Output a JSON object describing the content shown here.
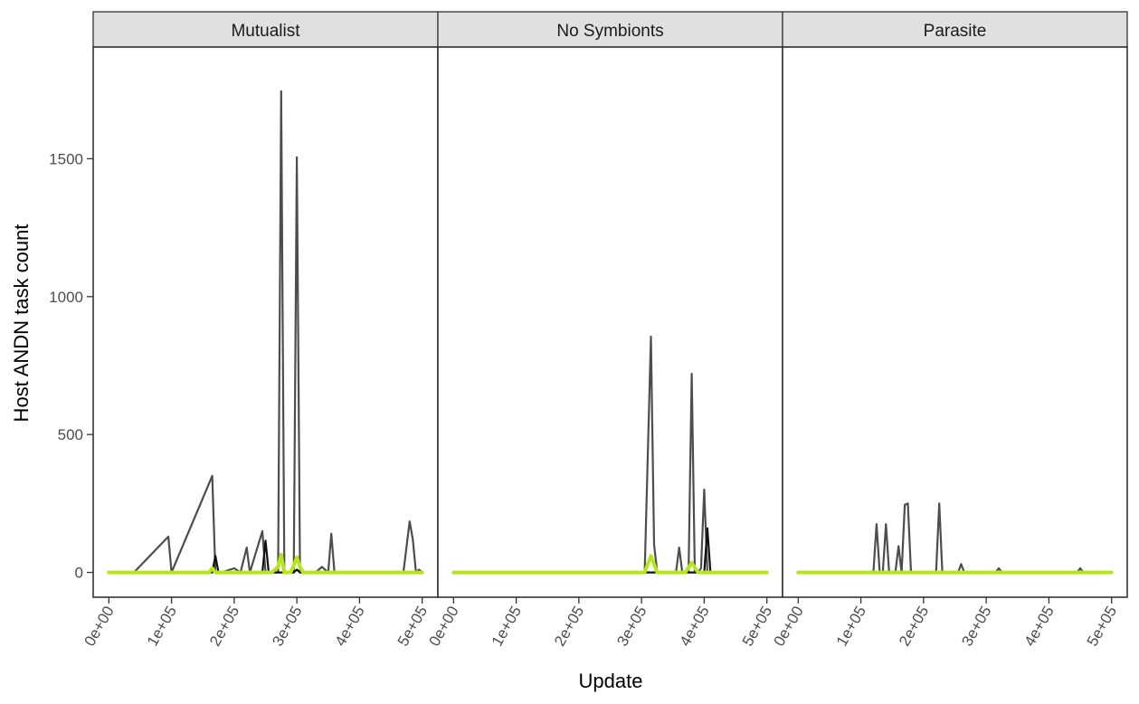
{
  "chart_data": {
    "type": "line",
    "xlabel": "Update",
    "ylabel": "Host ANDN task count",
    "xlim": [
      -25000,
      525000
    ],
    "ylim": [
      -90,
      1905
    ],
    "x_ticks": [
      0,
      100000,
      200000,
      300000,
      400000,
      500000
    ],
    "x_tick_labels": [
      "0e+00",
      "1e+05",
      "2e+05",
      "3e+05",
      "4e+05",
      "5e+05"
    ],
    "y_ticks": [
      0,
      500,
      1000,
      1500
    ],
    "y_tick_labels": [
      "0",
      "500",
      "1000",
      "1500"
    ],
    "grid": false,
    "legend": "none",
    "colors": {
      "dark_line": "#4d4d4d",
      "black_line": "#111111",
      "green_line": "#b5e61d",
      "strip_fill": "#e0e0e0",
      "axis": "#333333"
    },
    "panels": [
      {
        "label": "Mutualist",
        "series": [
          {
            "color": "dark_line",
            "x": [
              0,
              30000,
              40000,
              95000,
              100000,
              165000,
              170000,
              180000,
              200000,
              210000,
              220000,
              225000,
              245000,
              250000,
              270000,
              275000,
              280000,
              295000,
              300000,
              305000,
              330000,
              340000,
              350000,
              355000,
              360000,
              400000,
              470000,
              480000,
              485000,
              490000,
              495000,
              500000
            ],
            "y": [
              0,
              0,
              0,
              130,
              0,
              350,
              0,
              0,
              15,
              0,
              90,
              0,
              150,
              0,
              0,
              1745,
              0,
              0,
              1505,
              0,
              0,
              20,
              0,
              140,
              0,
              0,
              0,
              185,
              120,
              0,
              10,
              0
            ]
          },
          {
            "color": "black_line",
            "x": [
              0,
              165000,
              170000,
              175000,
              245000,
              250000,
              255000,
              295000,
              300000,
              305000,
              500000
            ],
            "y": [
              0,
              0,
              60,
              0,
              0,
              115,
              0,
              0,
              10,
              0,
              0
            ]
          },
          {
            "color": "green_line",
            "x": [
              0,
              160000,
              165000,
              170000,
              260000,
              270000,
              275000,
              280000,
              290000,
              295000,
              300000,
              305000,
              310000,
              500000
            ],
            "y": [
              0,
              0,
              15,
              0,
              0,
              20,
              65,
              0,
              0,
              25,
              55,
              20,
              0,
              0
            ]
          }
        ]
      },
      {
        "label": "No Symbionts",
        "series": [
          {
            "color": "dark_line",
            "x": [
              0,
              300000,
              305000,
              315000,
              320000,
              325000,
              355000,
              360000,
              365000,
              375000,
              380000,
              385000,
              390000,
              395000,
              400000,
              405000,
              500000
            ],
            "y": [
              0,
              0,
              0,
              855,
              100,
              0,
              0,
              90,
              0,
              0,
              720,
              0,
              0,
              15,
              300,
              0,
              0
            ]
          },
          {
            "color": "black_line",
            "x": [
              0,
              400000,
              405000,
              410000,
              500000
            ],
            "y": [
              0,
              0,
              160,
              0,
              0
            ]
          },
          {
            "color": "green_line",
            "x": [
              0,
              305000,
              315000,
              325000,
              370000,
              380000,
              390000,
              500000
            ],
            "y": [
              0,
              0,
              60,
              0,
              0,
              35,
              0,
              0
            ]
          }
        ]
      },
      {
        "label": "Parasite",
        "series": [
          {
            "color": "dark_line",
            "x": [
              0,
              120000,
              125000,
              130000,
              135000,
              140000,
              145000,
              155000,
              160000,
              165000,
              170000,
              175000,
              180000,
              220000,
              225000,
              230000,
              255000,
              260000,
              265000,
              315000,
              320000,
              325000,
              445000,
              450000,
              455000,
              500000
            ],
            "y": [
              0,
              0,
              175,
              0,
              0,
              175,
              0,
              0,
              95,
              0,
              245,
              250,
              0,
              0,
              250,
              0,
              0,
              30,
              0,
              0,
              15,
              0,
              0,
              15,
              0,
              0
            ]
          },
          {
            "color": "black_line",
            "x": [
              0,
              500000
            ],
            "y": [
              0,
              0
            ]
          },
          {
            "color": "green_line",
            "x": [
              0,
              500000
            ],
            "y": [
              0,
              0
            ]
          }
        ]
      }
    ]
  }
}
